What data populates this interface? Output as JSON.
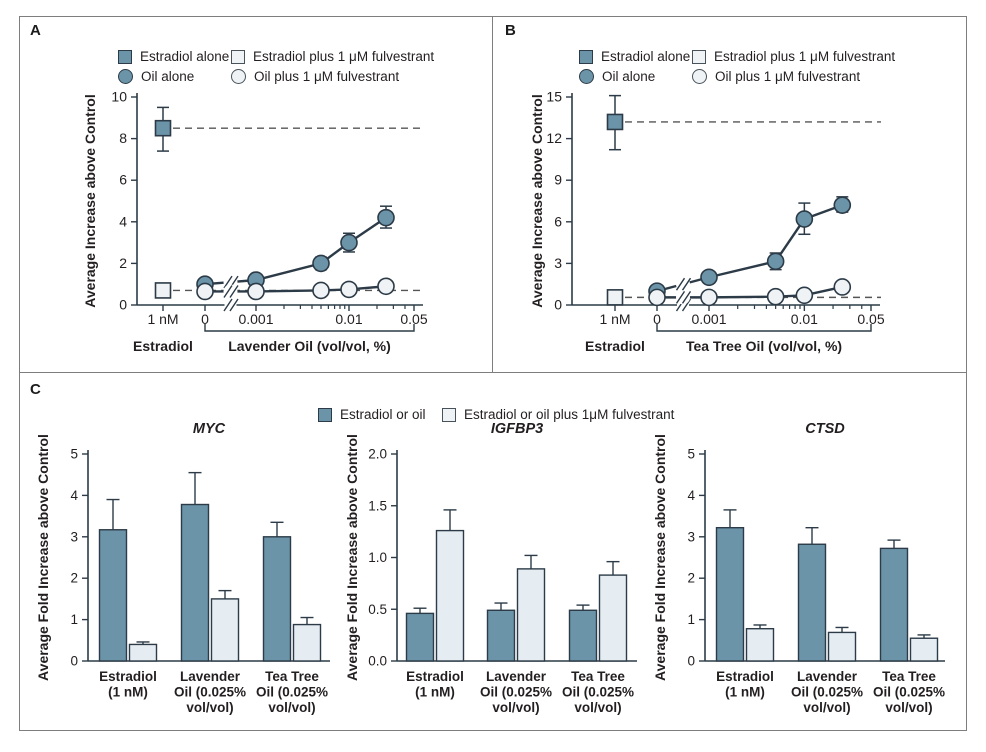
{
  "figure": {
    "panels": [
      {
        "label": "A"
      },
      {
        "label": "B"
      },
      {
        "label": "C"
      }
    ]
  },
  "colors": {
    "filled_marker": "#6C94A9",
    "open_marker": "#F0F3F5",
    "light_bar": "#E6EDF2",
    "line_stroke": "#2C3B47",
    "dashed_line": "#555555",
    "frame": "#7E7E7E",
    "text": "#231F20"
  },
  "legend_ab": {
    "items": [
      {
        "label": "Estradiol alone",
        "marker": "square",
        "variant": "filled"
      },
      {
        "label": "Estradiol plus 1 μM fulvestrant",
        "marker": "square",
        "variant": "open"
      },
      {
        "label": "Oil alone",
        "marker": "circle",
        "variant": "filled"
      },
      {
        "label": "Oil plus 1 μM fulvestrant",
        "marker": "circle",
        "variant": "open"
      }
    ]
  },
  "legend_c": {
    "items": [
      {
        "label": "Estradiol or oil",
        "variant": "filled"
      },
      {
        "label": "Estradiol or oil plus 1μM fulvestrant",
        "variant": "open"
      }
    ]
  },
  "chart_data": [
    {
      "id": "panel-A",
      "type": "line",
      "ylabel": "Average Increase above Control",
      "ylim": [
        0,
        10
      ],
      "yticks": [
        "0",
        "2",
        "4",
        "6",
        "8",
        "10"
      ],
      "x_axis": {
        "estradiol_tick_label": "1 nM",
        "estradiol_group_label": "Estradiol",
        "oil_group_label": "Lavender Oil (vol/vol, %)",
        "tick_labels": [
          "0",
          "0.001",
          "0.01",
          "0.05"
        ],
        "minor_ticks": [
          0.002,
          0.003,
          0.004,
          0.005,
          0.006,
          0.007,
          0.008,
          0.009,
          0.02,
          0.03,
          0.04
        ],
        "axis_break": true
      },
      "series": [
        {
          "name": "Estradiol alone",
          "marker": "square",
          "variant": "filled",
          "line": false,
          "x": [
            "estradiol"
          ],
          "y": [
            8.5
          ],
          "err_lo": [
            1.1
          ],
          "err_hi": [
            1.0
          ]
        },
        {
          "name": "Estradiol plus 1 μM fulvestrant",
          "marker": "square",
          "variant": "open",
          "line": false,
          "x": [
            "estradiol"
          ],
          "y": [
            0.7
          ],
          "err_lo": [
            0
          ],
          "err_hi": [
            0
          ]
        },
        {
          "name": "Oil alone",
          "marker": "circle",
          "variant": "filled",
          "line": true,
          "x": [
            0,
            0.001,
            0.005,
            0.01,
            0.025
          ],
          "y": [
            1.0,
            1.2,
            2.0,
            3.0,
            4.2
          ],
          "err_lo": [
            0,
            0,
            0.3,
            0.45,
            0.5
          ],
          "err_hi": [
            0,
            0,
            0.3,
            0.45,
            0.55
          ]
        },
        {
          "name": "Oil plus 1 μM fulvestrant",
          "marker": "circle",
          "variant": "open",
          "line": true,
          "x": [
            0,
            0.001,
            0.005,
            0.01,
            0.025
          ],
          "y": [
            0.65,
            0.65,
            0.7,
            0.75,
            0.9
          ],
          "err_lo": [
            0,
            0,
            0,
            0,
            0
          ],
          "err_hi": [
            0,
            0,
            0,
            0,
            0
          ]
        }
      ],
      "dashed_lines": [
        8.5,
        0.7
      ]
    },
    {
      "id": "panel-B",
      "type": "line",
      "ylabel": "Average Increase above Control",
      "ylim": [
        0,
        15
      ],
      "yticks": [
        "0",
        "3",
        "6",
        "9",
        "12",
        "15"
      ],
      "x_axis": {
        "estradiol_tick_label": "1 nM",
        "estradiol_group_label": "Estradiol",
        "oil_group_label": "Tea Tree Oil (vol/vol, %)",
        "tick_labels": [
          "0",
          "0.001",
          "0.01",
          "0.05"
        ],
        "minor_ticks": [
          0.002,
          0.003,
          0.004,
          0.005,
          0.006,
          0.007,
          0.008,
          0.009,
          0.02,
          0.03,
          0.04
        ],
        "axis_break": true
      },
      "series": [
        {
          "name": "Estradiol alone",
          "marker": "square",
          "variant": "filled",
          "line": false,
          "x": [
            "estradiol"
          ],
          "y": [
            13.2
          ],
          "err_lo": [
            2.0
          ],
          "err_hi": [
            1.9
          ]
        },
        {
          "name": "Estradiol plus 1 μM fulvestrant",
          "marker": "square",
          "variant": "open",
          "line": false,
          "x": [
            "estradiol"
          ],
          "y": [
            0.55
          ],
          "err_lo": [
            0
          ],
          "err_hi": [
            0
          ]
        },
        {
          "name": "Oil alone",
          "marker": "circle",
          "variant": "filled",
          "line": true,
          "x": [
            0,
            0.001,
            0.005,
            0.01,
            0.025
          ],
          "y": [
            1.0,
            2.0,
            3.15,
            6.2,
            7.2
          ],
          "err_lo": [
            0,
            0,
            0.6,
            1.1,
            0.5
          ],
          "err_hi": [
            0,
            0,
            0.6,
            1.15,
            0.6
          ]
        },
        {
          "name": "Oil plus 1 μM fulvestrant",
          "marker": "circle",
          "variant": "open",
          "line": true,
          "x": [
            0,
            0.001,
            0.005,
            0.01,
            0.025
          ],
          "y": [
            0.55,
            0.55,
            0.6,
            0.7,
            1.3
          ],
          "err_lo": [
            0,
            0,
            0,
            0,
            0
          ],
          "err_hi": [
            0,
            0,
            0,
            0,
            0
          ]
        }
      ],
      "dashed_lines": [
        13.2,
        0.55
      ]
    },
    {
      "id": "MYC",
      "type": "bar",
      "title": "MYC",
      "ylabel": "Average Fold Increase above Control",
      "ylim": [
        0,
        5
      ],
      "yticks": [
        "0",
        "1",
        "2",
        "3",
        "4",
        "5"
      ],
      "categories": [
        [
          "Estradiol",
          "(1 nM)"
        ],
        [
          "Lavender",
          "Oil (0.025%",
          "vol/vol)"
        ],
        [
          "Tea Tree",
          "Oil (0.025%",
          "vol/vol)"
        ]
      ],
      "series": [
        {
          "name": "Estradiol or oil",
          "variant": "filled",
          "values": [
            3.17,
            3.78,
            3.0
          ],
          "err": [
            0.73,
            0.77,
            0.35
          ]
        },
        {
          "name": "Estradiol or oil plus 1μM fulvestrant",
          "variant": "open",
          "values": [
            0.4,
            1.5,
            0.88
          ],
          "err": [
            0.06,
            0.2,
            0.17
          ]
        }
      ]
    },
    {
      "id": "IGFBP3",
      "type": "bar",
      "title": "IGFBP3",
      "ylabel": "Average Fold Increase above Control",
      "ylim": [
        0,
        2
      ],
      "yticks": [
        "0.0",
        "0.5",
        "1.0",
        "1.5",
        "2.0"
      ],
      "categories": [
        [
          "Estradiol",
          "(1 nM)"
        ],
        [
          "Lavender",
          "Oil (0.025%",
          "vol/vol)"
        ],
        [
          "Tea Tree",
          "Oil (0.025%",
          "vol/vol)"
        ]
      ],
      "series": [
        {
          "name": "Estradiol or oil",
          "variant": "filled",
          "values": [
            0.46,
            0.49,
            0.49
          ],
          "err": [
            0.05,
            0.07,
            0.05
          ]
        },
        {
          "name": "Estradiol or oil plus 1μM fulvestrant",
          "variant": "open",
          "values": [
            1.26,
            0.89,
            0.83
          ],
          "err": [
            0.2,
            0.13,
            0.13
          ]
        }
      ]
    },
    {
      "id": "CTSD",
      "type": "bar",
      "title": "CTSD",
      "ylabel": "Average Fold Increase above Control",
      "ylim": [
        0,
        5
      ],
      "yticks": [
        "0",
        "1",
        "2",
        "3",
        "4",
        "5"
      ],
      "categories": [
        [
          "Estradiol",
          "(1 nM)"
        ],
        [
          "Lavender",
          "Oil (0.025%",
          "vol/vol)"
        ],
        [
          "Tea Tree",
          "Oil (0.025%",
          "vol/vol)"
        ]
      ],
      "series": [
        {
          "name": "Estradiol or oil",
          "variant": "filled",
          "values": [
            3.22,
            2.82,
            2.72
          ],
          "err": [
            0.43,
            0.4,
            0.2
          ]
        },
        {
          "name": "Estradiol or oil plus 1μM fulvestrant",
          "variant": "open",
          "values": [
            0.78,
            0.69,
            0.55
          ],
          "err": [
            0.09,
            0.12,
            0.08
          ]
        }
      ]
    }
  ]
}
